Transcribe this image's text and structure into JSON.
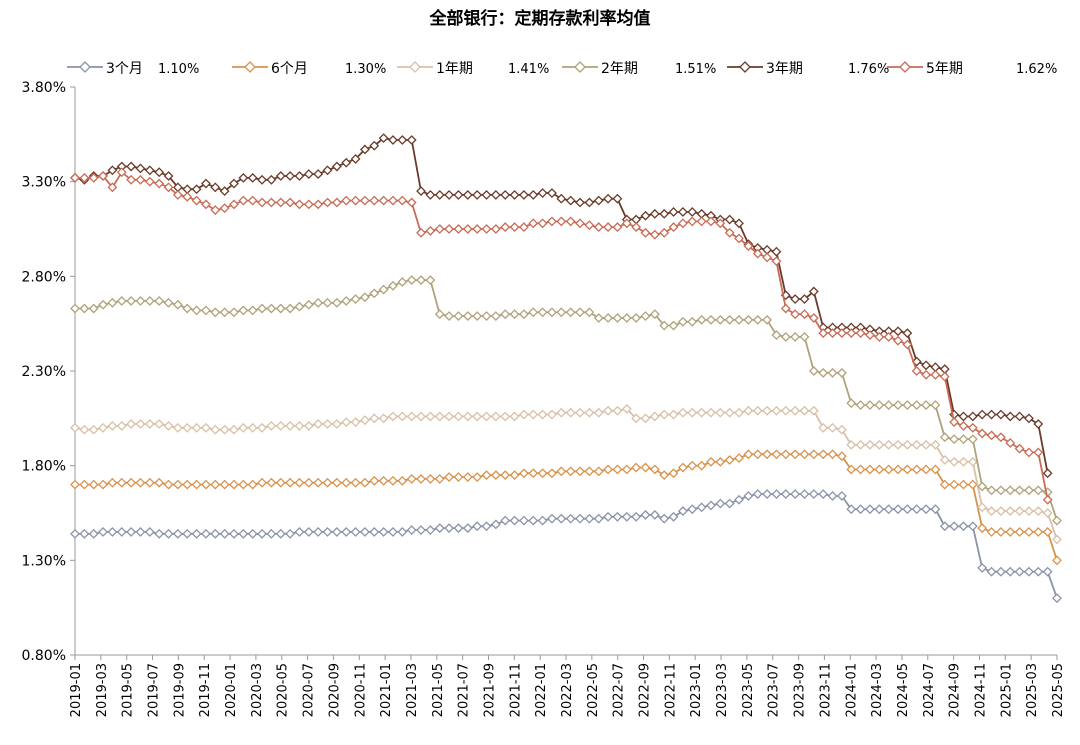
{
  "chart_data": {
    "type": "line",
    "title": "全部银行：定期存款利率均值",
    "xlabel": "",
    "ylabel": "",
    "ylim": [
      0.8,
      3.8
    ],
    "yticks": [
      "0.80%",
      "1.30%",
      "1.80%",
      "2.30%",
      "2.80%",
      "3.30%",
      "3.80%"
    ],
    "grid": false,
    "legend_position": "top",
    "x_tick_labels": [
      "2019-01",
      "2019-03",
      "2019-05",
      "2019-07",
      "2019-09",
      "2019-11",
      "2020-01",
      "2020-03",
      "2020-05",
      "2020-07",
      "2020-09",
      "2020-11",
      "2021-01",
      "2021-03",
      "2021-05",
      "2021-07",
      "2021-09",
      "2021-11",
      "2022-01",
      "2022-03",
      "2022-05",
      "2022-07",
      "2022-09",
      "2022-11",
      "2023-01",
      "2023-03",
      "2023-05",
      "2023-07",
      "2023-09",
      "2023-11",
      "2024-01",
      "2024-03",
      "2024-05",
      "2024-07",
      "2024-09",
      "2024-11",
      "2025-01",
      "2025-03",
      "2025-05"
    ],
    "series": [
      {
        "name": "3个月",
        "end_label": "1.10%",
        "color": "#8b93a8",
        "values": [
          1.44,
          1.44,
          1.44,
          1.45,
          1.45,
          1.45,
          1.45,
          1.45,
          1.45,
          1.44,
          1.44,
          1.44,
          1.44,
          1.44,
          1.44,
          1.44,
          1.44,
          1.44,
          1.44,
          1.44,
          1.44,
          1.44,
          1.44,
          1.44,
          1.45,
          1.45,
          1.45,
          1.45,
          1.45,
          1.45,
          1.45,
          1.45,
          1.45,
          1.45,
          1.45,
          1.45,
          1.46,
          1.46,
          1.46,
          1.47,
          1.47,
          1.47,
          1.47,
          1.48,
          1.48,
          1.49,
          1.51,
          1.51,
          1.51,
          1.51,
          1.51,
          1.52,
          1.52,
          1.52,
          1.52,
          1.52,
          1.52,
          1.53,
          1.53,
          1.53,
          1.53,
          1.54,
          1.54,
          1.52,
          1.53,
          1.56,
          1.57,
          1.58,
          1.59,
          1.6,
          1.6,
          1.62,
          1.64,
          1.65,
          1.65,
          1.65,
          1.65,
          1.65,
          1.65,
          1.65,
          1.65,
          1.64,
          1.64,
          1.57,
          1.57,
          1.57,
          1.57,
          1.57,
          1.57,
          1.57,
          1.57,
          1.57,
          1.57,
          1.48,
          1.48,
          1.48,
          1.48,
          1.26,
          1.24,
          1.24,
          1.24,
          1.24,
          1.24,
          1.24,
          1.24,
          1.1
        ]
      },
      {
        "name": "6个月",
        "end_label": "1.30%",
        "color": "#d9924c",
        "values": [
          1.7,
          1.7,
          1.7,
          1.7,
          1.71,
          1.71,
          1.71,
          1.71,
          1.71,
          1.71,
          1.7,
          1.7,
          1.7,
          1.7,
          1.7,
          1.7,
          1.7,
          1.7,
          1.7,
          1.7,
          1.71,
          1.71,
          1.71,
          1.71,
          1.71,
          1.71,
          1.71,
          1.71,
          1.71,
          1.71,
          1.71,
          1.71,
          1.72,
          1.72,
          1.72,
          1.72,
          1.73,
          1.73,
          1.73,
          1.73,
          1.74,
          1.74,
          1.74,
          1.74,
          1.75,
          1.75,
          1.75,
          1.75,
          1.76,
          1.76,
          1.76,
          1.76,
          1.77,
          1.77,
          1.77,
          1.77,
          1.77,
          1.78,
          1.78,
          1.78,
          1.79,
          1.79,
          1.78,
          1.75,
          1.76,
          1.79,
          1.8,
          1.8,
          1.82,
          1.82,
          1.83,
          1.84,
          1.86,
          1.86,
          1.86,
          1.86,
          1.86,
          1.86,
          1.86,
          1.86,
          1.86,
          1.86,
          1.85,
          1.78,
          1.78,
          1.78,
          1.78,
          1.78,
          1.78,
          1.78,
          1.78,
          1.78,
          1.78,
          1.7,
          1.7,
          1.7,
          1.7,
          1.47,
          1.45,
          1.45,
          1.45,
          1.45,
          1.45,
          1.45,
          1.45,
          1.3
        ]
      },
      {
        "name": "1年期",
        "end_label": "1.41%",
        "color": "#d9c0a6",
        "values": [
          2.0,
          1.99,
          1.99,
          2.0,
          2.01,
          2.01,
          2.02,
          2.02,
          2.02,
          2.02,
          2.01,
          2.0,
          2.0,
          2.0,
          2.0,
          1.99,
          1.99,
          1.99,
          2.0,
          2.0,
          2.0,
          2.01,
          2.01,
          2.01,
          2.01,
          2.01,
          2.02,
          2.02,
          2.02,
          2.03,
          2.03,
          2.04,
          2.05,
          2.05,
          2.06,
          2.06,
          2.06,
          2.06,
          2.06,
          2.06,
          2.06,
          2.06,
          2.06,
          2.06,
          2.06,
          2.06,
          2.06,
          2.06,
          2.07,
          2.07,
          2.07,
          2.07,
          2.08,
          2.08,
          2.08,
          2.08,
          2.08,
          2.09,
          2.09,
          2.1,
          2.05,
          2.05,
          2.06,
          2.07,
          2.07,
          2.08,
          2.08,
          2.08,
          2.08,
          2.08,
          2.08,
          2.08,
          2.09,
          2.09,
          2.09,
          2.09,
          2.09,
          2.09,
          2.09,
          2.09,
          2.0,
          2.0,
          1.99,
          1.91,
          1.91,
          1.91,
          1.91,
          1.91,
          1.91,
          1.91,
          1.91,
          1.91,
          1.91,
          1.83,
          1.82,
          1.82,
          1.82,
          1.58,
          1.56,
          1.56,
          1.56,
          1.56,
          1.56,
          1.56,
          1.55,
          1.41
        ]
      },
      {
        "name": "2年期",
        "end_label": "1.51%",
        "color": "#b0a27a",
        "values": [
          2.63,
          2.63,
          2.63,
          2.65,
          2.66,
          2.67,
          2.67,
          2.67,
          2.67,
          2.67,
          2.66,
          2.65,
          2.63,
          2.62,
          2.62,
          2.61,
          2.61,
          2.61,
          2.62,
          2.62,
          2.63,
          2.63,
          2.63,
          2.63,
          2.64,
          2.65,
          2.66,
          2.66,
          2.66,
          2.67,
          2.68,
          2.69,
          2.71,
          2.73,
          2.75,
          2.77,
          2.78,
          2.78,
          2.78,
          2.6,
          2.59,
          2.59,
          2.59,
          2.59,
          2.59,
          2.59,
          2.6,
          2.6,
          2.6,
          2.61,
          2.61,
          2.61,
          2.61,
          2.61,
          2.61,
          2.61,
          2.58,
          2.58,
          2.58,
          2.58,
          2.58,
          2.59,
          2.6,
          2.54,
          2.54,
          2.56,
          2.56,
          2.57,
          2.57,
          2.57,
          2.57,
          2.57,
          2.57,
          2.57,
          2.57,
          2.49,
          2.48,
          2.48,
          2.48,
          2.3,
          2.29,
          2.29,
          2.29,
          2.13,
          2.12,
          2.12,
          2.12,
          2.12,
          2.12,
          2.12,
          2.12,
          2.12,
          2.12,
          1.95,
          1.94,
          1.94,
          1.94,
          1.69,
          1.67,
          1.67,
          1.67,
          1.67,
          1.67,
          1.67,
          1.66,
          1.51
        ]
      },
      {
        "name": "3年期",
        "end_label": "1.76%",
        "color": "#6b3a2a",
        "values": [
          3.32,
          3.31,
          3.33,
          3.33,
          3.36,
          3.38,
          3.38,
          3.37,
          3.36,
          3.35,
          3.33,
          3.27,
          3.26,
          3.26,
          3.29,
          3.27,
          3.25,
          3.29,
          3.32,
          3.32,
          3.31,
          3.31,
          3.33,
          3.33,
          3.33,
          3.34,
          3.34,
          3.36,
          3.38,
          3.4,
          3.42,
          3.47,
          3.49,
          3.53,
          3.52,
          3.52,
          3.52,
          3.25,
          3.23,
          3.23,
          3.23,
          3.23,
          3.23,
          3.23,
          3.23,
          3.23,
          3.23,
          3.23,
          3.23,
          3.23,
          3.24,
          3.24,
          3.21,
          3.2,
          3.19,
          3.19,
          3.2,
          3.21,
          3.21,
          3.1,
          3.1,
          3.12,
          3.13,
          3.13,
          3.14,
          3.14,
          3.14,
          3.13,
          3.12,
          3.1,
          3.1,
          3.08,
          2.97,
          2.95,
          2.94,
          2.93,
          2.7,
          2.68,
          2.68,
          2.72,
          2.53,
          2.53,
          2.53,
          2.53,
          2.53,
          2.52,
          2.51,
          2.51,
          2.51,
          2.5,
          2.35,
          2.33,
          2.32,
          2.31,
          2.07,
          2.06,
          2.06,
          2.07,
          2.07,
          2.07,
          2.06,
          2.06,
          2.05,
          2.02,
          1.76
        ]
      },
      {
        "name": "5年期",
        "end_label": "1.62%",
        "color": "#c96b55",
        "values": [
          3.32,
          3.32,
          3.32,
          3.33,
          3.27,
          3.35,
          3.31,
          3.31,
          3.3,
          3.29,
          3.27,
          3.23,
          3.22,
          3.2,
          3.18,
          3.15,
          3.16,
          3.18,
          3.2,
          3.2,
          3.19,
          3.19,
          3.19,
          3.19,
          3.18,
          3.18,
          3.18,
          3.19,
          3.19,
          3.2,
          3.2,
          3.2,
          3.2,
          3.2,
          3.2,
          3.2,
          3.19,
          3.03,
          3.04,
          3.05,
          3.05,
          3.05,
          3.05,
          3.05,
          3.05,
          3.05,
          3.06,
          3.06,
          3.06,
          3.08,
          3.08,
          3.09,
          3.09,
          3.09,
          3.08,
          3.07,
          3.06,
          3.06,
          3.06,
          3.08,
          3.06,
          3.03,
          3.02,
          3.03,
          3.06,
          3.08,
          3.09,
          3.09,
          3.09,
          3.08,
          3.03,
          3.0,
          2.96,
          2.92,
          2.9,
          2.88,
          2.63,
          2.6,
          2.6,
          2.58,
          2.5,
          2.5,
          2.5,
          2.5,
          2.5,
          2.49,
          2.48,
          2.48,
          2.46,
          2.44,
          2.3,
          2.28,
          2.28,
          2.27,
          2.03,
          2.01,
          2.0,
          1.97,
          1.96,
          1.95,
          1.92,
          1.89,
          1.87,
          1.87,
          1.62
        ]
      }
    ]
  }
}
